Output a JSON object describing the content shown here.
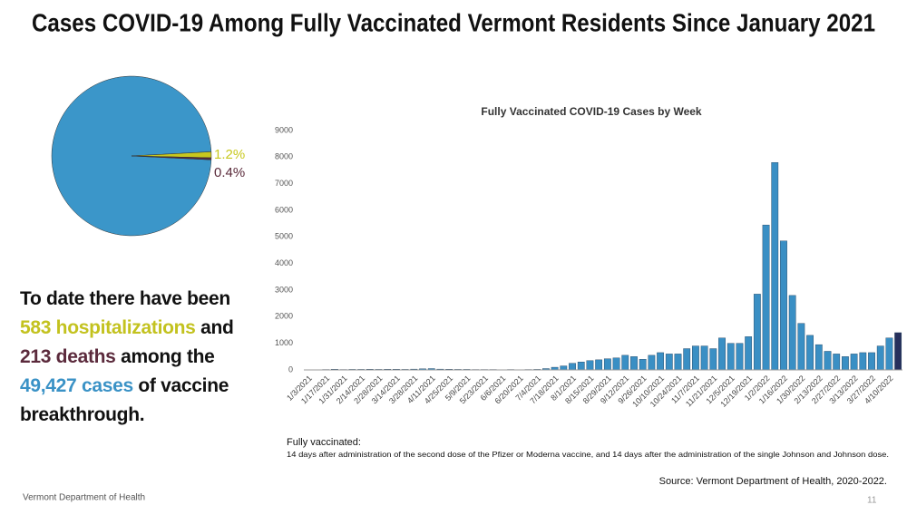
{
  "title": "Cases COVID-19 Among Fully Vaccinated Vermont Residents Since January 2021",
  "statement": [
    {
      "text": "To date there have been ",
      "color": "#111111"
    },
    {
      "text": "583 hospitalizations",
      "color": "#c3c21f"
    },
    {
      "text": " and ",
      "color": "#111111"
    },
    {
      "text": "213 deaths",
      "color": "#5b2a3c"
    },
    {
      "text": " among the ",
      "color": "#111111"
    },
    {
      "text": "49,427 cases",
      "color": "#3a92c6"
    },
    {
      "text": " of vaccine breakthrough.",
      "color": "#111111"
    }
  ],
  "footnote_title": "Fully vaccinated:",
  "footnote_text": "14 days after administration of the second dose of the Pfizer or Moderna vaccine, and 14 days after the administration of the single Johnson and Johnson dose.",
  "source": "Source: Vermont Department of Health, 2020-2022.",
  "footer": "Vermont Department of Health",
  "page_number": "11",
  "chart_data": [
    {
      "type": "pie",
      "values": [
        98.4,
        1.2,
        0.4
      ],
      "value_labels": [
        null,
        "1.2%",
        "0.4%"
      ],
      "colors": [
        "#3b96c9",
        "#c8c81e",
        "#5a2a3a"
      ]
    },
    {
      "type": "bar",
      "title": "Fully Vaccinated COVID-19 Cases by Week",
      "categories": [
        "1/3/2021",
        null,
        "1/17/2021",
        null,
        "1/31/2021",
        null,
        "2/14/2021",
        null,
        "2/28/2021",
        null,
        "3/14/2021",
        null,
        "3/28/2021",
        null,
        "4/11/2021",
        null,
        "4/25/2021",
        null,
        "5/9/2021",
        null,
        "5/23/2021",
        null,
        "6/6/2021",
        null,
        "6/20/2021",
        null,
        "7/4/2021",
        null,
        "7/18/2021",
        null,
        "8/1/2021",
        null,
        "8/15/2021",
        null,
        "8/29/2021",
        null,
        "9/12/2021",
        null,
        "9/26/2021",
        null,
        "10/10/2021",
        null,
        "10/24/2021",
        null,
        "11/7/2021",
        null,
        "11/21/2021",
        null,
        "12/5/2021",
        null,
        "12/19/2021",
        null,
        "1/2/2022",
        null,
        "1/16/2022",
        null,
        "1/30/2022",
        null,
        "2/13/2022",
        null,
        "2/27/2022",
        null,
        "3/13/2022",
        null,
        "3/27/2022",
        null,
        "4/10/2022",
        null
      ],
      "values": [
        5,
        10,
        15,
        25,
        15,
        20,
        20,
        25,
        20,
        25,
        25,
        20,
        30,
        40,
        50,
        30,
        25,
        20,
        20,
        15,
        15,
        15,
        10,
        15,
        10,
        15,
        20,
        50,
        100,
        150,
        250,
        300,
        350,
        380,
        420,
        450,
        550,
        500,
        400,
        550,
        650,
        600,
        600,
        800,
        900,
        900,
        800,
        1200,
        1000,
        1000,
        1250,
        2850,
        5450,
        7800,
        4850,
        2800,
        1750,
        1300,
        950,
        700,
        600,
        500,
        600,
        650,
        650,
        900,
        1200,
        1400
      ],
      "color": "#3a8fc4",
      "highlight": {
        "index": 67,
        "color": "#262f5c"
      },
      "ylim": [
        0,
        9000
      ],
      "yticks": [
        0,
        1000,
        2000,
        3000,
        4000,
        5000,
        6000,
        7000,
        8000,
        9000
      ],
      "grid": false
    }
  ]
}
